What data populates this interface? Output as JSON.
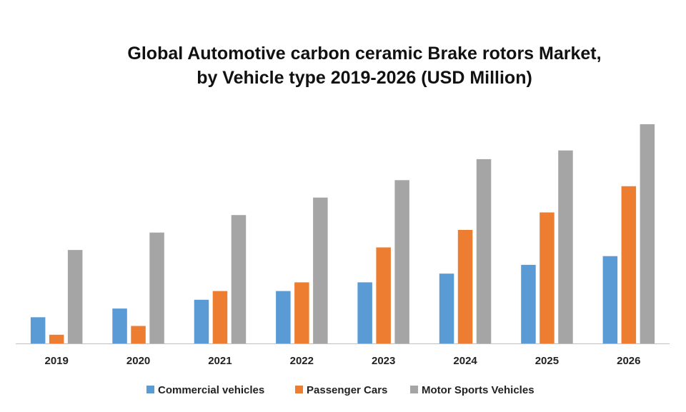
{
  "chart_data": {
    "type": "bar",
    "title_line1": "Global Automotive carbon ceramic Brake rotors Market,",
    "title_line2": "by Vehicle type 2019-2026 (USD Million)",
    "categories": [
      "2019",
      "2020",
      "2021",
      "2022",
      "2023",
      "2024",
      "2025",
      "2026"
    ],
    "series": [
      {
        "name": "Commercial vehicles",
        "color": "#5B9BD5",
        "values": [
          3,
          4,
          5,
          6,
          7,
          8,
          9,
          10
        ]
      },
      {
        "name": "Passenger Cars",
        "color": "#ED7D31",
        "values": [
          1,
          2,
          6,
          7,
          11,
          13,
          15,
          18
        ]
      },
      {
        "name": "Motor Sports Vehicles",
        "color": "#A5A5A5",
        "values": [
          10.7,
          12.7,
          14.7,
          16.7,
          18.7,
          21.1,
          22.1,
          25.1
        ]
      }
    ],
    "ylim": [
      0,
      25.1
    ],
    "grid": false,
    "legend_position": "bottom"
  }
}
